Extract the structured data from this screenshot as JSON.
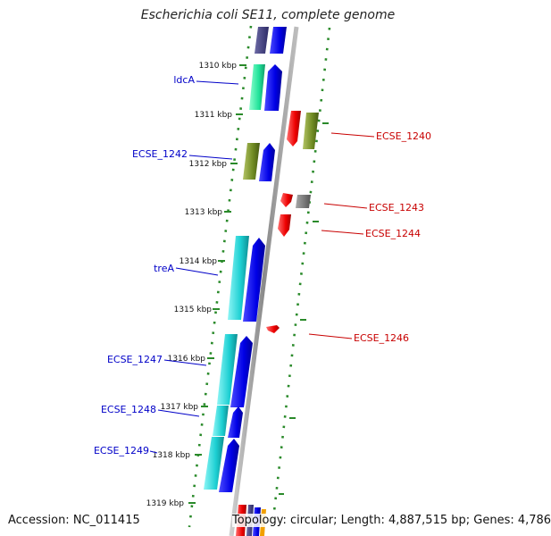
{
  "title": "Escherichia coli SE11, complete genome",
  "accession": "Accession: NC_011415",
  "topology": "Topology: circular; Length: 4,887,515 bp; Genes: 4,786",
  "colors": {
    "left_label": "#0000c8",
    "right_label": "#c80000",
    "tick_dots": "#2a8a2a",
    "backbone": "#9a9a9a"
  },
  "kbp_ticks": [
    "1310 kbp",
    "1311 kbp",
    "1312 kbp",
    "1313 kbp",
    "1314 kbp",
    "1315 kbp",
    "1316 kbp",
    "1317 kbp",
    "1318 kbp",
    "1319 kbp"
  ],
  "left_labels": [
    "ldcA",
    "ECSE_1242",
    "treA",
    "ECSE_1247",
    "ECSE_1248",
    "ECSE_1249"
  ],
  "right_labels": [
    "ECSE_1240",
    "ECSE_1243",
    "ECSE_1244",
    "ECSE_1246"
  ]
}
